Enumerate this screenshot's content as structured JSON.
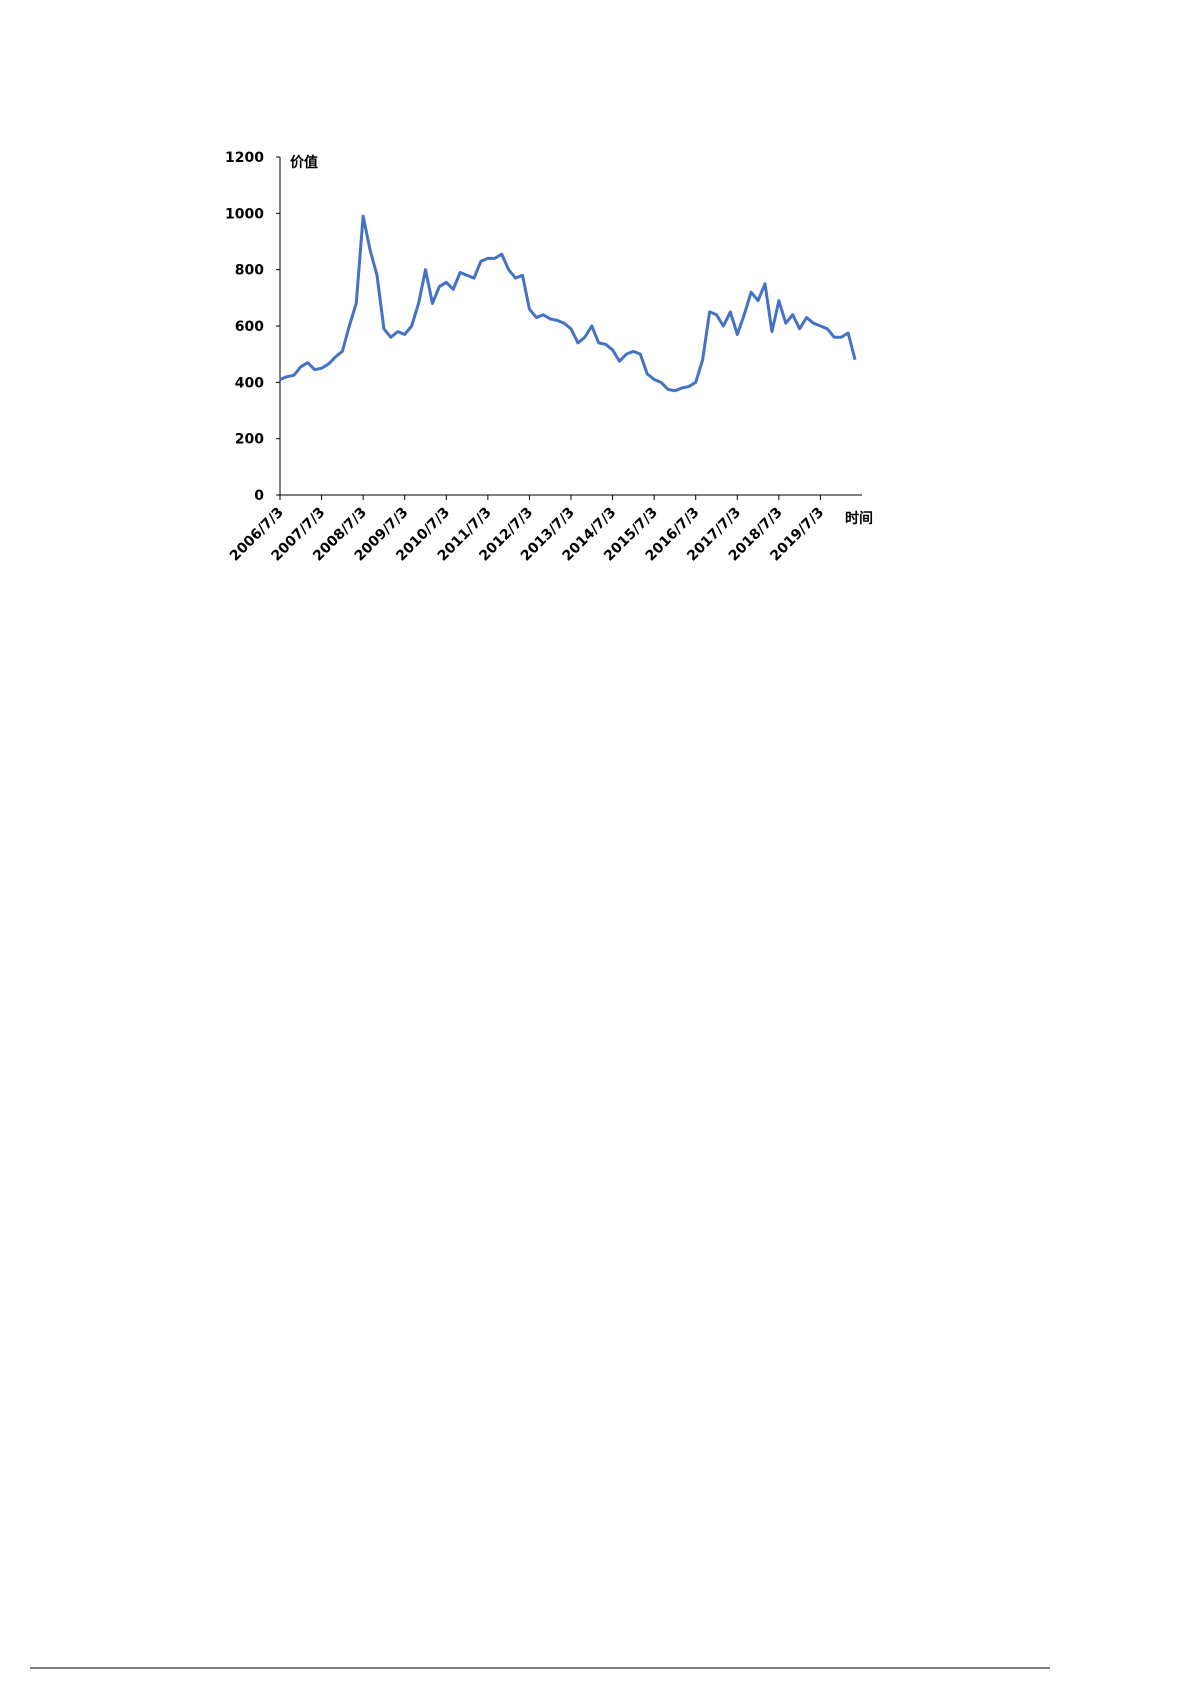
{
  "chart_data": {
    "type": "line",
    "ylabel": "价值",
    "xlabel": "时间",
    "categories": [
      "2006/7/3",
      null,
      null,
      null,
      null,
      null,
      "2007/7/3",
      null,
      null,
      null,
      null,
      null,
      "2008/7/3",
      null,
      null,
      null,
      null,
      null,
      "2009/7/3",
      null,
      null,
      null,
      null,
      null,
      "2010/7/3",
      null,
      null,
      null,
      null,
      null,
      "2011/7/3",
      null,
      null,
      null,
      null,
      null,
      "2012/7/3",
      null,
      null,
      null,
      null,
      null,
      "2013/7/3",
      null,
      null,
      null,
      null,
      null,
      "2014/7/3",
      null,
      null,
      null,
      null,
      null,
      "2015/7/3",
      null,
      null,
      null,
      null,
      null,
      "2016/7/3",
      null,
      null,
      null,
      null,
      null,
      "2017/7/3",
      null,
      null,
      null,
      null,
      null,
      "2018/7/3",
      null,
      null,
      null,
      null,
      null,
      "2019/7/3",
      null,
      null,
      null,
      null,
      null
    ],
    "values": [
      410,
      420,
      425,
      455,
      470,
      445,
      450,
      465,
      490,
      510,
      600,
      680,
      990,
      870,
      780,
      590,
      560,
      580,
      570,
      600,
      680,
      800,
      680,
      740,
      755,
      730,
      790,
      780,
      770,
      830,
      840,
      840,
      855,
      800,
      770,
      780,
      660,
      630,
      640,
      625,
      620,
      610,
      590,
      540,
      560,
      600,
      540,
      535,
      515,
      475,
      500,
      510,
      500,
      430,
      410,
      400,
      375,
      370,
      380,
      385,
      400,
      480,
      650,
      640,
      600,
      650,
      570,
      640,
      720,
      690,
      750,
      580,
      690,
      610,
      640,
      590,
      630,
      610,
      600,
      590,
      560,
      560,
      575,
      480
    ],
    "color": "#4472c4",
    "ylim": [
      0,
      1200
    ],
    "yticks": [
      0,
      200,
      400,
      600,
      800,
      1000,
      1200
    ]
  }
}
